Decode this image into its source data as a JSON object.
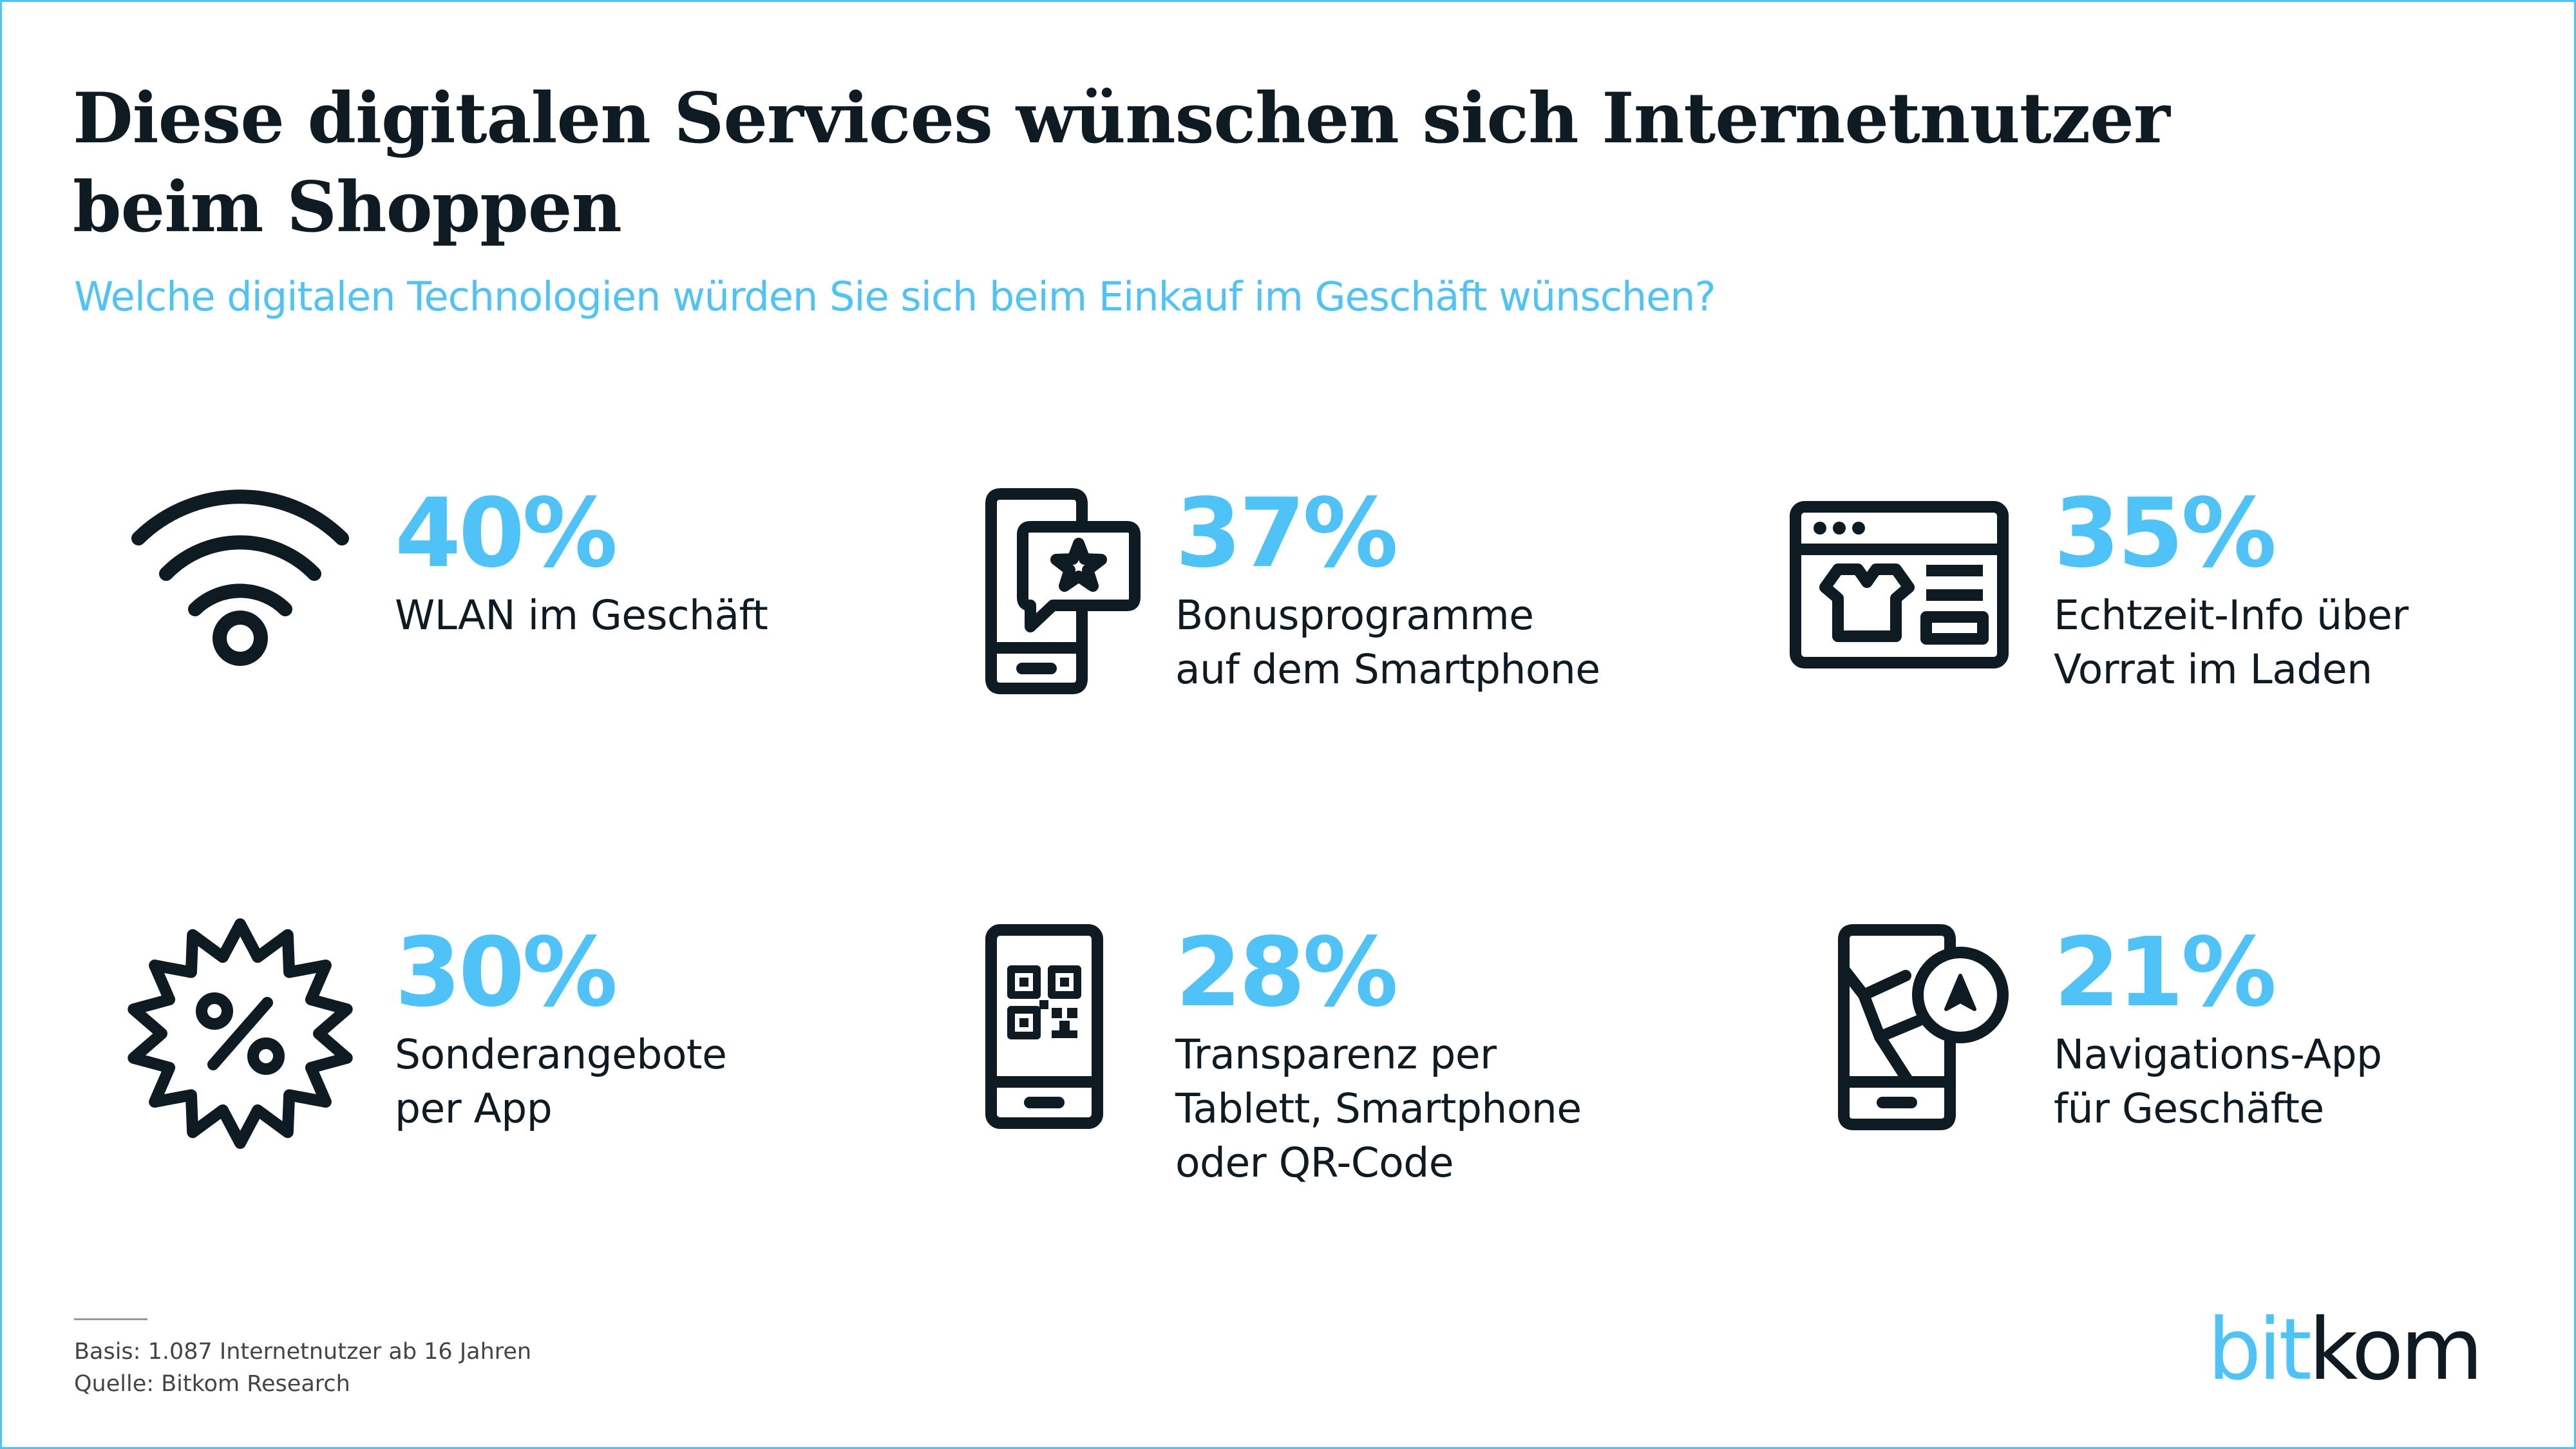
{
  "header": {
    "title": "Diese digitalen Services wünschen sich Internetnutzer beim Shoppen",
    "subtitle": "Welche digitalen Technologien würden Sie sich beim Einkauf im Geschäft wünschen?"
  },
  "chart_data": {
    "type": "table",
    "categories": [
      "WLAN im Geschäft",
      "Bonusprogramme auf dem Smartphone",
      "Echtzeit-Info über Vorrat im Laden",
      "Sonderangebote per App",
      "Transparenz per Tablett, Smartphone oder QR-Code",
      "Navigations-App für Geschäfte"
    ],
    "values": [
      40,
      37,
      35,
      30,
      28,
      21
    ],
    "unit": "%"
  },
  "items": [
    {
      "percent": "40%",
      "label_lines": [
        "WLAN im Geschäft"
      ],
      "icon": "wifi-icon"
    },
    {
      "percent": "37%",
      "label_lines": [
        "Bonusprogramme",
        "auf dem Smartphone"
      ],
      "icon": "smartphone-star-icon"
    },
    {
      "percent": "35%",
      "label_lines": [
        "Echtzeit-Info über",
        "Vorrat im Laden"
      ],
      "icon": "online-shop-window-icon"
    },
    {
      "percent": "30%",
      "label_lines": [
        "Sonderangebote",
        "per App"
      ],
      "icon": "percent-badge-icon"
    },
    {
      "percent": "28%",
      "label_lines": [
        "Transparenz per",
        "Tablett, Smartphone",
        "oder QR-Code"
      ],
      "icon": "smartphone-qr-code-icon"
    },
    {
      "percent": "21%",
      "label_lines": [
        "Navigations-App",
        "für Geschäfte"
      ],
      "icon": "smartphone-navigation-icon"
    }
  ],
  "footer": {
    "basis": "Basis: 1.087 Internetnutzer ab 16 Jahren",
    "source": "Quelle: Bitkom Research",
    "logo_part1": "bit",
    "logo_part2": "kom"
  },
  "colors": {
    "accent": "#4fc3f7",
    "text": "#0f1b22",
    "border": "#4fc3f7"
  }
}
